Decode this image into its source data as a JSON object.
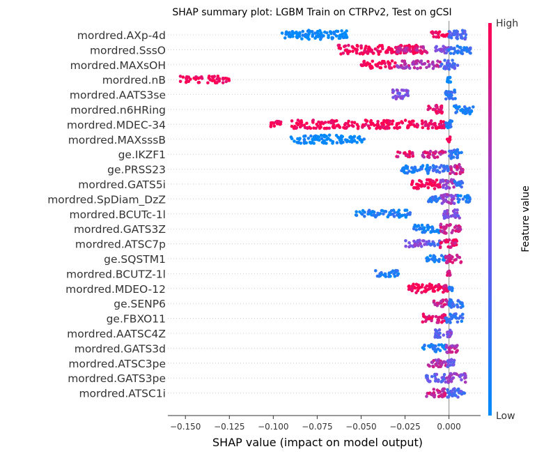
{
  "chart_data": {
    "type": "scatter",
    "title": "SHAP summary plot: LGBM Train on CTRPv2, Test on gCSI",
    "xlabel": "SHAP value (impact on model output)",
    "xlim": [
      -0.16,
      0.018
    ],
    "xticks": [
      "−0.150",
      "−0.125",
      "−0.100",
      "−0.075",
      "−0.050",
      "−0.025",
      "0.000"
    ],
    "xtick_values": [
      -0.15,
      -0.125,
      -0.1,
      -0.075,
      -0.05,
      -0.025,
      0.0
    ],
    "colorbar": {
      "title": "Feature value",
      "high": "High",
      "low": "Low",
      "low_color": "#008afb",
      "high_color": "#ff0052"
    },
    "features": [
      {
        "name": "mordred.AXp-4d",
        "clusters": [
          [
            -0.095,
            -0.085,
            0,
            0.85
          ],
          [
            -0.085,
            -0.07,
            0,
            1.0
          ],
          [
            -0.07,
            -0.058,
            0,
            0.9
          ],
          [
            -0.01,
            0.0,
            1,
            0.6
          ],
          [
            0.0,
            0.01,
            0.3,
            1.0
          ]
        ]
      },
      {
        "name": "mordred.SssO",
        "clusters": [
          [
            -0.063,
            -0.015,
            1,
            1.0
          ],
          [
            -0.03,
            -0.012,
            0.8,
            0.6
          ],
          [
            -0.008,
            0.0,
            0.5,
            0.7
          ],
          [
            0.0,
            0.013,
            0.2,
            0.9
          ]
        ]
      },
      {
        "name": "mordred.MAXsOH",
        "clusters": [
          [
            -0.05,
            -0.03,
            1,
            0.8
          ],
          [
            -0.03,
            -0.005,
            0.7,
            0.8
          ],
          [
            -0.005,
            0.005,
            0.3,
            1.0
          ]
        ]
      },
      {
        "name": "mordred.nB",
        "clusters": [
          [
            -0.153,
            -0.125,
            1,
            0.7
          ],
          [
            -0.001,
            0.001,
            0,
            0.5
          ]
        ]
      },
      {
        "name": "mordred.AATS3se",
        "clusters": [
          [
            -0.033,
            -0.023,
            0.5,
            1.0
          ],
          [
            -0.002,
            0.004,
            0.2,
            1.0
          ]
        ]
      },
      {
        "name": "mordred.n6HRing",
        "clusters": [
          [
            -0.012,
            -0.003,
            0.9,
            0.9
          ],
          [
            0.003,
            0.014,
            0.1,
            1.0
          ]
        ]
      },
      {
        "name": "mordred.MDEC-34",
        "clusters": [
          [
            -0.102,
            -0.095,
            1,
            0.6
          ],
          [
            -0.09,
            -0.02,
            1,
            0.9
          ],
          [
            -0.02,
            -0.002,
            0.95,
            0.9
          ],
          [
            -0.002,
            0.002,
            0.1,
            0.8
          ]
        ]
      },
      {
        "name": "mordred.MAXsssB",
        "clusters": [
          [
            -0.09,
            -0.06,
            0,
            0.9
          ],
          [
            -0.06,
            -0.048,
            0,
            0.6
          ],
          [
            -0.001,
            0.001,
            1,
            0.5
          ]
        ]
      },
      {
        "name": "ge.IKZF1",
        "clusters": [
          [
            -0.03,
            -0.02,
            0.9,
            0.5
          ],
          [
            -0.015,
            -0.002,
            0.8,
            0.7
          ],
          [
            0.0,
            0.008,
            0.2,
            1.0
          ]
        ]
      },
      {
        "name": "ge.PRSS23",
        "clusters": [
          [
            -0.027,
            -0.01,
            0.1,
            0.9
          ],
          [
            -0.01,
            0.0,
            0.2,
            0.8
          ],
          [
            0.0,
            0.008,
            0.8,
            1.0
          ]
        ]
      },
      {
        "name": "mordred.GATS5i",
        "clusters": [
          [
            -0.022,
            -0.005,
            1,
            1.0
          ],
          [
            -0.005,
            0.003,
            0.6,
            1.0
          ],
          [
            0.003,
            0.008,
            0.2,
            0.6
          ]
        ]
      },
      {
        "name": "mordred.SpDiam_DzZ",
        "clusters": [
          [
            -0.012,
            -0.005,
            0.2,
            0.7
          ],
          [
            -0.005,
            0.005,
            0.6,
            1.0
          ],
          [
            0.005,
            0.012,
            0.1,
            0.7
          ]
        ]
      },
      {
        "name": "mordred.BCUTc-1l",
        "clusters": [
          [
            -0.053,
            -0.022,
            0.1,
            0.8
          ],
          [
            -0.003,
            0.006,
            0.5,
            1.0
          ]
        ]
      },
      {
        "name": "mordred.GATS3Z",
        "clusters": [
          [
            -0.02,
            -0.005,
            0.1,
            0.8
          ],
          [
            -0.005,
            0.007,
            0.8,
            1.0
          ]
        ]
      },
      {
        "name": "mordred.ATSC7p",
        "clusters": [
          [
            -0.025,
            -0.012,
            0.5,
            0.7
          ],
          [
            -0.012,
            -0.005,
            0.3,
            0.5
          ],
          [
            -0.005,
            0.005,
            0.9,
            0.9
          ]
        ]
      },
      {
        "name": "ge.SQSTM1",
        "clusters": [
          [
            -0.013,
            -0.002,
            0.1,
            0.7
          ],
          [
            -0.002,
            0.007,
            0.8,
            0.9
          ]
        ]
      },
      {
        "name": "mordred.BCUTZ-1l",
        "clusters": [
          [
            -0.042,
            -0.028,
            0.1,
            0.6
          ],
          [
            -0.001,
            0.001,
            0.8,
            0.5
          ]
        ]
      },
      {
        "name": "mordred.MDEO-12",
        "clusters": [
          [
            -0.023,
            -0.003,
            1,
            1.0
          ],
          [
            -0.003,
            0.0,
            0.9,
            0.6
          ],
          [
            0.0,
            0.002,
            0.1,
            0.4
          ]
        ]
      },
      {
        "name": "ge.SENP6",
        "clusters": [
          [
            -0.009,
            0.0,
            0.8,
            0.8
          ],
          [
            0.0,
            0.008,
            0.2,
            1.0
          ]
        ]
      },
      {
        "name": "ge.FBXO11",
        "clusters": [
          [
            -0.015,
            -0.002,
            0.9,
            0.9
          ],
          [
            -0.002,
            0.008,
            0.2,
            1.0
          ]
        ]
      },
      {
        "name": "mordred.AATSC4Z",
        "clusters": [
          [
            -0.008,
            -0.003,
            0.4,
            0.9
          ],
          [
            -0.001,
            0.002,
            0.5,
            0.8
          ]
        ]
      },
      {
        "name": "mordred.GATS3d",
        "clusters": [
          [
            -0.015,
            -0.002,
            0.1,
            0.8
          ],
          [
            -0.002,
            0.005,
            0.7,
            1.0
          ]
        ]
      },
      {
        "name": "mordred.ATSC3pe",
        "clusters": [
          [
            -0.012,
            -0.001,
            0.7,
            0.8
          ],
          [
            -0.001,
            0.003,
            0.4,
            0.8
          ]
        ]
      },
      {
        "name": "mordred.GATS3pe",
        "clusters": [
          [
            -0.013,
            -0.002,
            0.4,
            0.8
          ],
          [
            -0.002,
            0.01,
            0.6,
            1.0
          ]
        ]
      },
      {
        "name": "mordred.ATSC1i",
        "clusters": [
          [
            -0.013,
            -0.002,
            0.8,
            0.9
          ],
          [
            -0.002,
            0.009,
            0.3,
            1.0
          ]
        ]
      }
    ]
  }
}
